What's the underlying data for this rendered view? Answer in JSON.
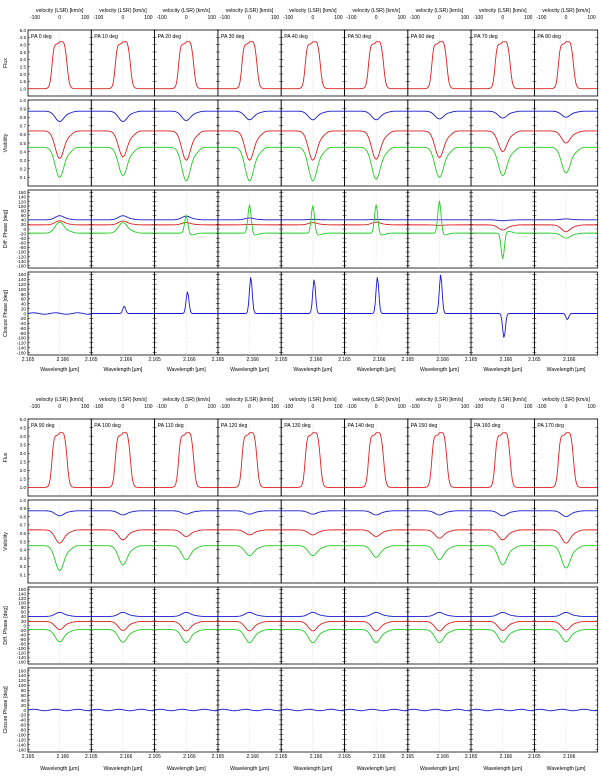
{
  "figure": {
    "top_axis_title": "velocity (LSR) [km/s]",
    "bottom_axis_title": "Wavelength [µm]",
    "velocity_ticks": [
      "-100",
      "0",
      "100"
    ],
    "wavelength_ticks": [
      "2.165",
      "2.166"
    ],
    "colors": {
      "flux": "#e02020",
      "vis_blue": "#1a1acc",
      "vis_red": "#dd1f1f",
      "vis_green": "#22cc22",
      "closure": "#1a1acc",
      "guide": "#bbbbbb"
    }
  },
  "chart_data": [
    {
      "type": "line",
      "title": "",
      "position_angles": [
        "PA 0 deg",
        "PA 10 deg",
        "PA 20 deg",
        "PA 30 deg",
        "PA 40 deg",
        "PA 50 deg",
        "PA 60 deg",
        "PA 70 deg",
        "PA 80 deg"
      ],
      "xlabel": "Wavelength [µm]",
      "x2label": "velocity (LSR) [km/s]",
      "panels": [
        {
          "ylabel": "Flux",
          "ylim": [
            0.5,
            5.0
          ],
          "yticks": [
            "1.0",
            "1.5",
            "2.0",
            "2.5",
            "3.0",
            "3.5",
            "4.0",
            "4.5",
            "5.0"
          ]
        },
        {
          "ylabel": "Visibility",
          "ylim": [
            0.0,
            1.0
          ],
          "yticks": [
            "0.1",
            "0.2",
            "0.3",
            "0.4",
            "0.5",
            "0.6",
            "0.7",
            "0.8",
            "0.9",
            "1.0"
          ]
        },
        {
          "ylabel": "Diff. Phase [deg]",
          "ylim": [
            -170,
            170
          ],
          "yticks": [
            "-160",
            "-140",
            "-120",
            "-100",
            "-80",
            "-60",
            "-40",
            "-20",
            "0",
            "20",
            "40",
            "60",
            "80",
            "100",
            "120",
            "140",
            "160"
          ]
        },
        {
          "ylabel": "Closure Phase [deg]",
          "ylim": [
            -170,
            170
          ],
          "yticks": [
            "-160",
            "-140",
            "-120",
            "-100",
            "-80",
            "-60",
            "-40",
            "-20",
            "0",
            "20",
            "40",
            "60",
            "80",
            "100",
            "120",
            "140",
            "160"
          ]
        }
      ],
      "series": [
        {
          "panel": "flux",
          "values_by_pa": [
            [
              1.0,
              4.2
            ],
            [
              1.0,
              4.2
            ],
            [
              1.0,
              4.2
            ],
            [
              1.0,
              4.2
            ],
            [
              1.0,
              4.2
            ],
            [
              1.0,
              4.2
            ],
            [
              1.0,
              4.2
            ],
            [
              1.0,
              4.2
            ],
            [
              1.0,
              4.2
            ]
          ]
        },
        {
          "panel": "visibility",
          "baseline": "short",
          "values_by_pa": [
            [
              0.87,
              0.75
            ],
            [
              0.87,
              0.75
            ],
            [
              0.87,
              0.76
            ],
            [
              0.87,
              0.77
            ],
            [
              0.87,
              0.77
            ],
            [
              0.87,
              0.77
            ],
            [
              0.87,
              0.78
            ],
            [
              0.87,
              0.79
            ],
            [
              0.87,
              0.8
            ]
          ]
        },
        {
          "panel": "visibility",
          "baseline": "medium",
          "values_by_pa": [
            [
              0.64,
              0.32
            ],
            [
              0.64,
              0.34
            ],
            [
              0.64,
              0.3
            ],
            [
              0.64,
              0.3
            ],
            [
              0.64,
              0.3
            ],
            [
              0.64,
              0.31
            ],
            [
              0.64,
              0.33
            ],
            [
              0.64,
              0.4
            ],
            [
              0.64,
              0.5
            ]
          ]
        },
        {
          "panel": "visibility",
          "baseline": "long",
          "values_by_pa": [
            [
              0.45,
              0.1
            ],
            [
              0.45,
              0.12
            ],
            [
              0.45,
              0.06
            ],
            [
              0.45,
              0.06
            ],
            [
              0.45,
              0.06
            ],
            [
              0.45,
              0.08
            ],
            [
              0.45,
              0.1
            ],
            [
              0.45,
              0.12
            ],
            [
              0.45,
              0.15
            ]
          ]
        },
        {
          "panel": "diff_phase",
          "baseline": "short",
          "values_by_pa": [
            [
              40,
              58
            ],
            [
              40,
              58
            ],
            [
              40,
              56
            ],
            [
              40,
              48
            ],
            [
              40,
              42
            ],
            [
              40,
              42
            ],
            [
              40,
              40
            ],
            [
              40,
              36
            ],
            [
              40,
              44
            ]
          ]
        },
        {
          "panel": "diff_phase",
          "baseline": "medium",
          "values_by_pa": [
            [
              18,
              36
            ],
            [
              18,
              35
            ],
            [
              18,
              28
            ],
            [
              18,
              20
            ],
            [
              18,
              28
            ],
            [
              18,
              30
            ],
            [
              18,
              16
            ],
            [
              18,
              -4
            ],
            [
              18,
              -12
            ]
          ]
        },
        {
          "panel": "diff_phase",
          "baseline": "long",
          "values_by_pa": [
            [
              -18,
              30
            ],
            [
              -18,
              28
            ],
            [
              -18,
              60
            ],
            [
              -18,
              108
            ],
            [
              -18,
              104
            ],
            [
              -18,
              108
            ],
            [
              -18,
              124
            ],
            [
              -18,
              -132
            ],
            [
              -18,
              -40
            ]
          ]
        },
        {
          "panel": "closure_phase",
          "baseline": "closure",
          "values_by_pa": [
            [
              0,
              0
            ],
            [
              0,
              30
            ],
            [
              0,
              90
            ],
            [
              0,
              150
            ],
            [
              0,
              140
            ],
            [
              0,
              150
            ],
            [
              0,
              160
            ],
            [
              0,
              -100
            ],
            [
              0,
              -25
            ]
          ]
        }
      ]
    },
    {
      "type": "line",
      "title": "",
      "position_angles": [
        "PA 90 deg",
        "PA 100 deg",
        "PA 110 deg",
        "PA 120 deg",
        "PA 130 deg",
        "PA 140 deg",
        "PA 150 deg",
        "PA 160 deg",
        "PA 170 deg"
      ],
      "xlabel": "Wavelength [µm]",
      "x2label": "velocity (LSR) [km/s]",
      "panels": [
        {
          "ylabel": "Flux",
          "ylim": [
            0.5,
            5.0
          ],
          "yticks": [
            "1.0",
            "1.5",
            "2.0",
            "2.5",
            "3.0",
            "3.5",
            "4.0",
            "4.5",
            "5.0"
          ]
        },
        {
          "ylabel": "Visibility",
          "ylim": [
            0.0,
            1.0
          ],
          "yticks": [
            "0.1",
            "0.2",
            "0.3",
            "0.4",
            "0.5",
            "0.6",
            "0.7",
            "0.8",
            "0.9",
            "1.0"
          ]
        },
        {
          "ylabel": "Diff. Phase [deg]",
          "ylim": [
            -170,
            170
          ],
          "yticks": [
            "-160",
            "-140",
            "-120",
            "-100",
            "-80",
            "-60",
            "-40",
            "-20",
            "0",
            "20",
            "40",
            "60",
            "80",
            "100",
            "120",
            "140",
            "160"
          ]
        },
        {
          "ylabel": "Closure Phase [deg]",
          "ylim": [
            -170,
            170
          ],
          "yticks": [
            "-160",
            "-140",
            "-120",
            "-100",
            "-80",
            "-60",
            "-40",
            "-20",
            "0",
            "20",
            "40",
            "60",
            "80",
            "100",
            "120",
            "140",
            "160"
          ]
        }
      ],
      "series": [
        {
          "panel": "flux",
          "values_by_pa": [
            [
              1.0,
              4.2
            ],
            [
              1.0,
              4.2
            ],
            [
              1.0,
              4.2
            ],
            [
              1.0,
              4.2
            ],
            [
              1.0,
              4.2
            ],
            [
              1.0,
              4.2
            ],
            [
              1.0,
              4.2
            ],
            [
              1.0,
              4.2
            ],
            [
              1.0,
              4.2
            ]
          ]
        },
        {
          "panel": "visibility",
          "baseline": "short",
          "values_by_pa": [
            [
              0.87,
              0.81
            ],
            [
              0.87,
              0.82
            ],
            [
              0.87,
              0.83
            ],
            [
              0.87,
              0.83
            ],
            [
              0.87,
              0.83
            ],
            [
              0.87,
              0.82
            ],
            [
              0.87,
              0.82
            ],
            [
              0.87,
              0.81
            ],
            [
              0.87,
              0.8
            ]
          ]
        },
        {
          "panel": "visibility",
          "baseline": "medium",
          "values_by_pa": [
            [
              0.64,
              0.48
            ],
            [
              0.64,
              0.52
            ],
            [
              0.64,
              0.56
            ],
            [
              0.64,
              0.58
            ],
            [
              0.64,
              0.58
            ],
            [
              0.64,
              0.56
            ],
            [
              0.64,
              0.54
            ],
            [
              0.64,
              0.52
            ],
            [
              0.64,
              0.48
            ]
          ]
        },
        {
          "panel": "visibility",
          "baseline": "long",
          "values_by_pa": [
            [
              0.45,
              0.15
            ],
            [
              0.45,
              0.22
            ],
            [
              0.45,
              0.28
            ],
            [
              0.45,
              0.33
            ],
            [
              0.45,
              0.33
            ],
            [
              0.45,
              0.31
            ],
            [
              0.45,
              0.28
            ],
            [
              0.45,
              0.22
            ],
            [
              0.45,
              0.18
            ]
          ]
        },
        {
          "panel": "diff_phase",
          "baseline": "short",
          "values_by_pa": [
            [
              40,
              58
            ],
            [
              40,
              58
            ],
            [
              40,
              58
            ],
            [
              40,
              58
            ],
            [
              40,
              58
            ],
            [
              40,
              58
            ],
            [
              40,
              58
            ],
            [
              40,
              58
            ],
            [
              40,
              58
            ]
          ]
        },
        {
          "panel": "diff_phase",
          "baseline": "medium",
          "values_by_pa": [
            [
              18,
              -18
            ],
            [
              18,
              -22
            ],
            [
              18,
              -24
            ],
            [
              18,
              -24
            ],
            [
              18,
              -24
            ],
            [
              18,
              -24
            ],
            [
              18,
              -24
            ],
            [
              18,
              -22
            ],
            [
              18,
              -20
            ]
          ]
        },
        {
          "panel": "diff_phase",
          "baseline": "long",
          "values_by_pa": [
            [
              -18,
              -72
            ],
            [
              -18,
              -74
            ],
            [
              -18,
              -76
            ],
            [
              -18,
              -76
            ],
            [
              -18,
              -76
            ],
            [
              -18,
              -76
            ],
            [
              -18,
              -76
            ],
            [
              -18,
              -74
            ],
            [
              -18,
              -72
            ]
          ]
        },
        {
          "panel": "closure_phase",
          "baseline": "closure",
          "values_by_pa": [
            [
              0,
              0
            ],
            [
              0,
              0
            ],
            [
              0,
              0
            ],
            [
              0,
              0
            ],
            [
              0,
              0
            ],
            [
              0,
              0
            ],
            [
              0,
              0
            ],
            [
              0,
              0
            ],
            [
              0,
              0
            ]
          ]
        }
      ]
    }
  ]
}
